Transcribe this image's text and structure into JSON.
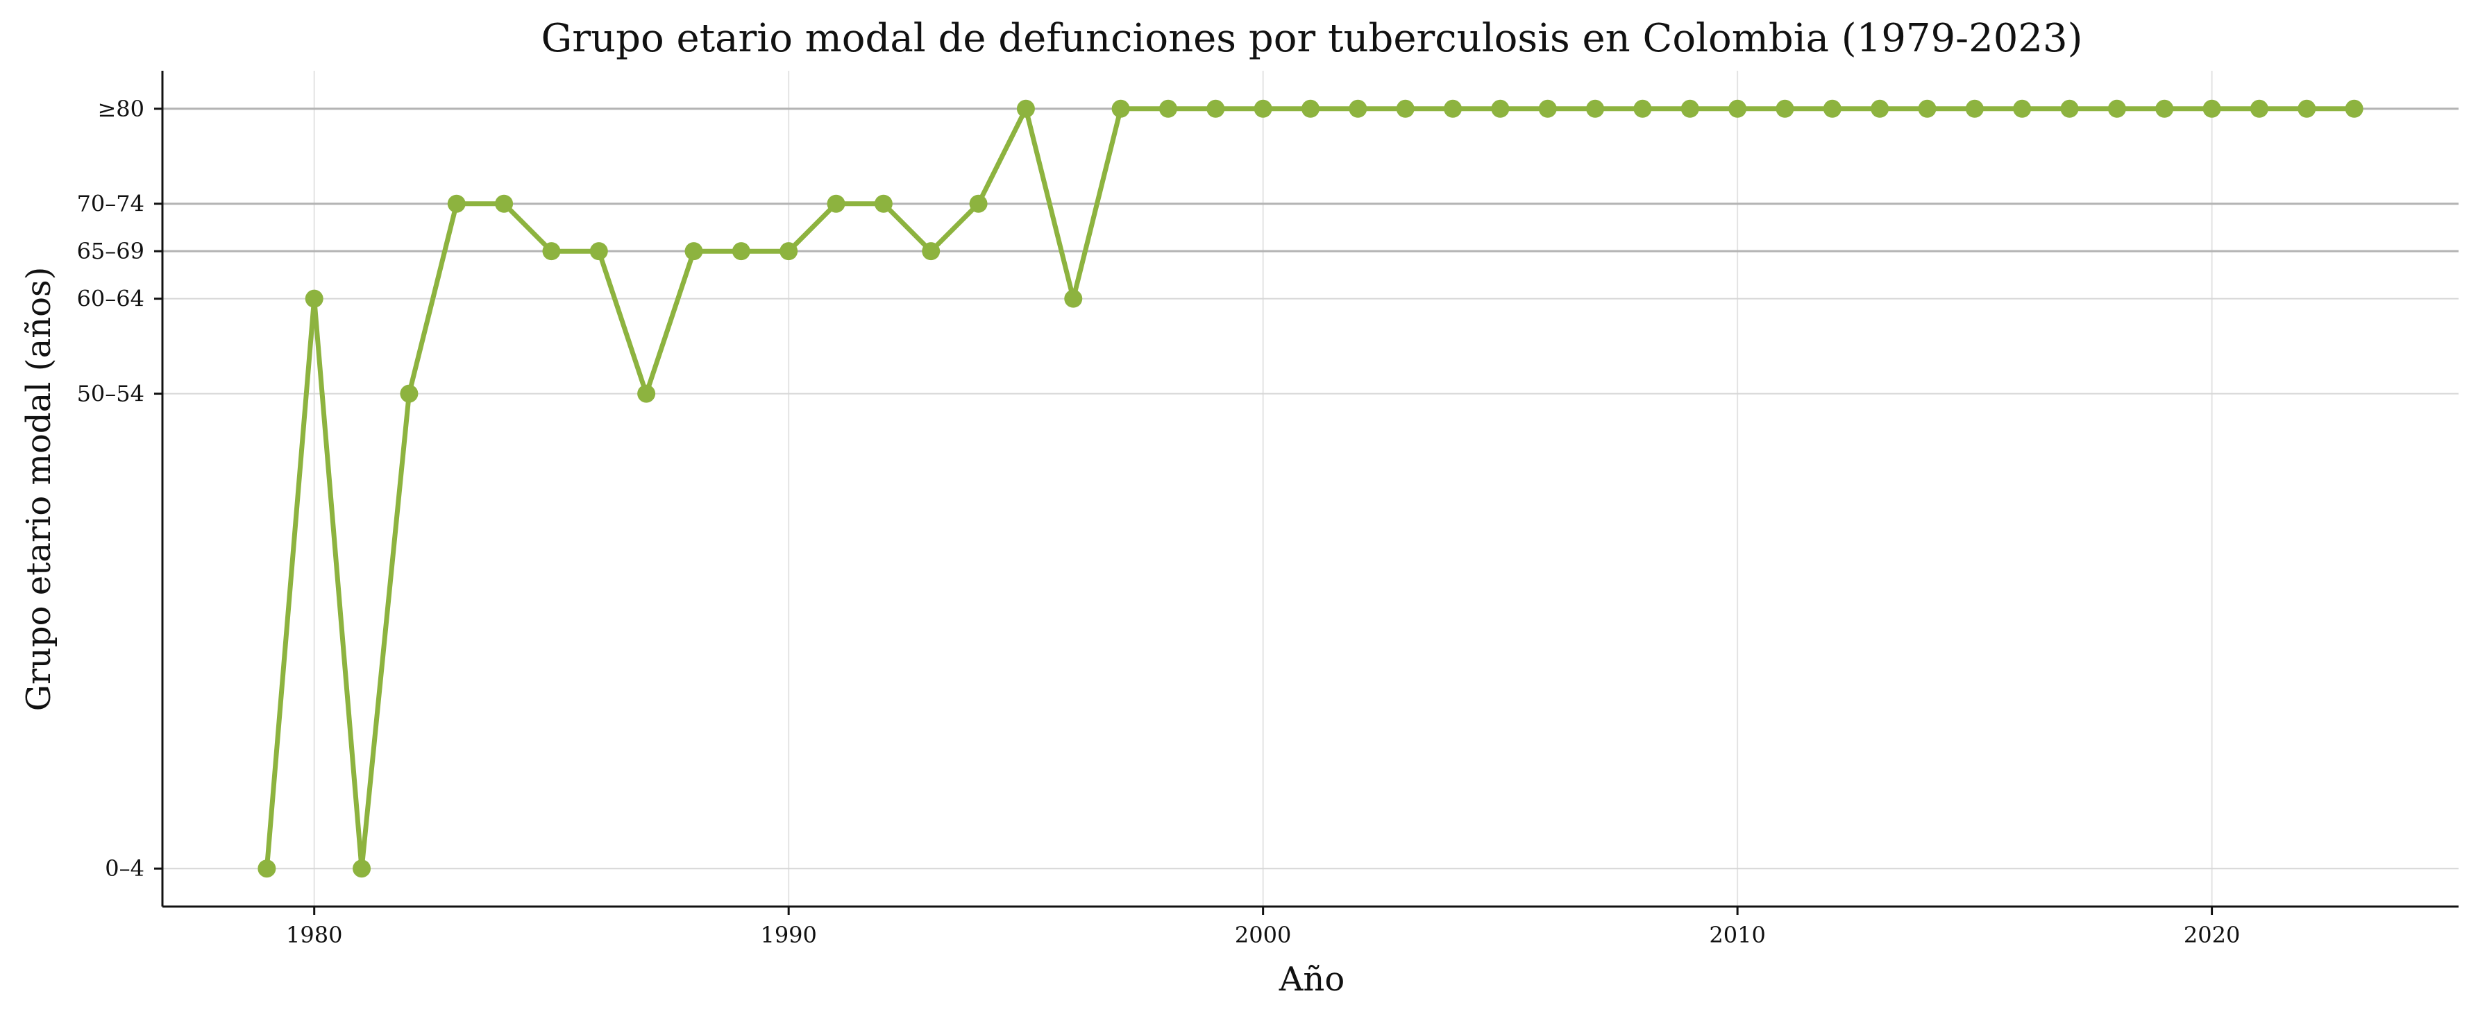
{
  "chart_data": {
    "type": "line",
    "title": "Grupo etario modal de defunciones por tuberculosis en Colombia (1979-2023)",
    "xlabel": "Año",
    "ylabel": "Grupo etario modal (años)",
    "xlim": [
      1976.8,
      2025.2
    ],
    "x_ticks": [
      1980,
      1990,
      2000,
      2010,
      2020
    ],
    "x_tick_labels": [
      "1980",
      "1990",
      "2000",
      "2010",
      "2020"
    ],
    "y_scale": "age-group index (each step = 5-year group)",
    "ylim": [
      -0.8,
      16.8
    ],
    "y_ticks": [
      {
        "value": 0,
        "label": "0–4"
      },
      {
        "value": 10,
        "label": "50–54"
      },
      {
        "value": 12,
        "label": "60–64"
      },
      {
        "value": 13,
        "label": "65–69"
      },
      {
        "value": 14,
        "label": "70–74"
      },
      {
        "value": 16,
        "label": "≥80"
      }
    ],
    "strong_gridlines": [
      13,
      14,
      16
    ],
    "grid": true,
    "line_color": "#8db33f",
    "series": [
      {
        "x": [
          1979,
          1980,
          1981,
          1982,
          1983,
          1984,
          1985,
          1986,
          1987,
          1988,
          1989,
          1990,
          1991,
          1992,
          1993,
          1994,
          1995,
          1996,
          1997,
          1998,
          1999,
          2000,
          2001,
          2002,
          2003,
          2004,
          2005,
          2006,
          2007,
          2008,
          2009,
          2010,
          2011,
          2012,
          2013,
          2014,
          2015,
          2016,
          2017,
          2018,
          2019,
          2020,
          2021,
          2022,
          2023
        ],
        "values": [
          0,
          12,
          0,
          10,
          14,
          14,
          13,
          13,
          10,
          13,
          13,
          13,
          14,
          14,
          13,
          14,
          16,
          12,
          16,
          16,
          16,
          16,
          16,
          16,
          16,
          16,
          16,
          16,
          16,
          16,
          16,
          16,
          16,
          16,
          16,
          16,
          16,
          16,
          16,
          16,
          16,
          16,
          16,
          16,
          16
        ]
      }
    ]
  }
}
